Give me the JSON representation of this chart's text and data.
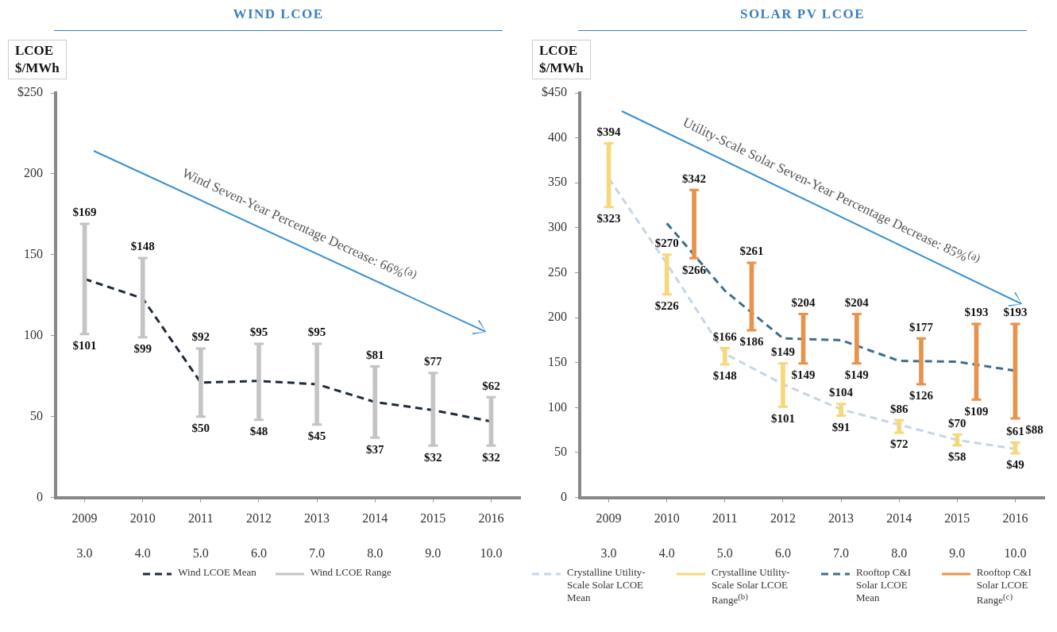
{
  "chart_data": [
    {
      "type": "line",
      "title": "WIND LCOE",
      "ylabel": "LCOE\n$/MWh",
      "xlim": [
        2008.5,
        2016.5
      ],
      "xticks": [
        2009,
        2010,
        2011,
        2012,
        2013,
        2014,
        2015,
        2016
      ],
      "x2lim": [
        2.5,
        10.5
      ],
      "x2ticks": [
        {
          "value": 3,
          "label": "3.0"
        },
        {
          "value": 4,
          "label": "4.0"
        },
        {
          "value": 5,
          "label": "5.0"
        },
        {
          "value": 6,
          "label": "6.0"
        },
        {
          "value": 7,
          "label": "7.0"
        },
        {
          "value": 8,
          "label": "8.0"
        },
        {
          "value": 9,
          "label": "9.0"
        },
        {
          "value": 10,
          "label": "10.0"
        }
      ],
      "ylim": [
        0,
        250
      ],
      "yticks": [
        0,
        50,
        100,
        150,
        200,
        {
          "value": 250,
          "label": "$250"
        }
      ],
      "grid": false,
      "legend": "bottom",
      "marker": "none",
      "series": [
        {
          "name": "Wind LCOE Mean",
          "line_style": "dashed",
          "color": "#1f2a3c",
          "x": [
            2009,
            2010,
            2011,
            2012,
            2013,
            2014,
            2015,
            2016
          ],
          "values": [
            135,
            123,
            71,
            72,
            70,
            59,
            54,
            47
          ]
        },
        {
          "name": "Wind LCOE Range",
          "type": "bar",
          "color": "#c4c4c4",
          "x": [
            2009,
            2010,
            2011,
            2012,
            2013,
            2014,
            2015,
            2016
          ],
          "base": [
            101,
            99,
            50,
            48,
            45,
            37,
            32,
            32
          ],
          "values": [
            68,
            49,
            42,
            47,
            50,
            44,
            45,
            30
          ]
        }
      ],
      "annotations": [
        "Wind Seven-Year Percentage Decrease: 66%$^{(a)}$",
        {
          "text": "$169",
          "x": 2009,
          "y": 169
        },
        {
          "text": "$101",
          "x": 2009,
          "y": 101
        },
        {
          "text": "$148",
          "x": 2010,
          "y": 148
        },
        {
          "text": "$99",
          "x": 2010,
          "y": 99
        },
        {
          "text": "$92",
          "x": 2011,
          "y": 92
        },
        {
          "text": "$50",
          "x": 2011,
          "y": 50
        },
        {
          "text": "$95",
          "x": 2012,
          "y": 95
        },
        {
          "text": "$48",
          "x": 2012,
          "y": 48
        },
        {
          "text": "$95",
          "x": 2013,
          "y": 95
        },
        {
          "text": "$45",
          "x": 2013,
          "y": 45
        },
        {
          "text": "$81",
          "x": 2014,
          "y": 81
        },
        {
          "text": "$37",
          "x": 2014,
          "y": 37
        },
        {
          "text": "$77",
          "x": 2015,
          "y": 77
        },
        {
          "text": "$32",
          "x": 2015,
          "y": 32
        },
        {
          "text": "$62",
          "x": 2016,
          "y": 62
        },
        {
          "text": "$32",
          "x": 2016,
          "y": 32
        }
      ]
    },
    {
      "type": "line",
      "title": "SOLAR PV LCOE",
      "ylabel": "LCOE\n$/MWh",
      "xlim": [
        2008.5,
        2016.5
      ],
      "xticks": [
        2009,
        2010,
        2011,
        2012,
        2013,
        2014,
        2015,
        2016
      ],
      "x2lim": [
        2.5,
        10.5
      ],
      "x2ticks": [
        {
          "value": 3,
          "label": "3.0"
        },
        {
          "value": 4,
          "label": "4.0"
        },
        {
          "value": 5,
          "label": "5.0"
        },
        {
          "value": 6,
          "label": "6.0"
        },
        {
          "value": 7,
          "label": "7.0"
        },
        {
          "value": 8,
          "label": "8.0"
        },
        {
          "value": 9,
          "label": "9.0"
        },
        {
          "value": 10,
          "label": "10.0"
        }
      ],
      "ylim": [
        0,
        450
      ],
      "yticks": [
        0,
        50,
        100,
        150,
        200,
        250,
        300,
        350,
        400,
        {
          "value": 450,
          "label": "$450"
        }
      ],
      "grid": false,
      "legend": "bottom",
      "marker": "none",
      "series": [
        {
          "name": "Crystalline Utility-Scale Solar LCOE Mean",
          "line_style": "dashed",
          "color": "#c5d6e6",
          "x": [
            2009,
            2010,
            2011,
            2012,
            2013,
            2014,
            2015,
            2016
          ],
          "values": [
            355,
            260,
            160,
            126,
            98,
            81,
            64,
            54
          ]
        },
        {
          "name": "Crystalline Utility-Scale Solar LCOE Range$^{(b)}$",
          "type": "bar",
          "color": "#f6d77a",
          "x": [
            2009,
            2010,
            2011,
            2012,
            2013,
            2014,
            2015,
            2016
          ],
          "base": [
            323,
            226,
            148,
            101,
            91,
            72,
            58,
            49
          ],
          "values": [
            71,
            44,
            18,
            48,
            13,
            14,
            12,
            12
          ]
        },
        {
          "name": "Rooftop C&I Solar LCOE Mean",
          "line_style": "dashed",
          "color": "#3f6e8c",
          "x": [
            2010,
            2011,
            2012,
            2013,
            2014,
            2015,
            2016
          ],
          "values": [
            305,
            230,
            177,
            175,
            152,
            151,
            141
          ]
        },
        {
          "name": "Rooftop C&I Solar LCOE Range$^{(c)}$",
          "type": "bar",
          "color": "#e8924a",
          "x": [
            2010.47,
            2011.46,
            2012.35,
            2013.27,
            2014.38,
            2015.33,
            2016
          ],
          "base": [
            266,
            186,
            149,
            149,
            126,
            109,
            88
          ],
          "values": [
            76,
            75,
            55,
            55,
            51,
            84,
            105
          ]
        }
      ],
      "annotations": [
        "Utility-Scale Solar Seven-Year Percentage Decrease: 85%$^{(a)}$",
        {
          "text": "$394",
          "x": 2009,
          "y": 394
        },
        {
          "text": "$323",
          "x": 2009,
          "y": 323
        },
        {
          "text": "$270",
          "x": 2010,
          "y": 270
        },
        {
          "text": "$226",
          "x": 2010,
          "y": 226
        },
        {
          "text": "$166",
          "x": 2011,
          "y": 166
        },
        {
          "text": "$148",
          "x": 2011,
          "y": 148
        },
        {
          "text": "$149",
          "x": 2012,
          "y": 149
        },
        {
          "text": "$101",
          "x": 2012,
          "y": 101
        },
        {
          "text": "$104",
          "x": 2013,
          "y": 104
        },
        {
          "text": "$91",
          "x": 2013,
          "y": 91
        },
        {
          "text": "$86",
          "x": 2014,
          "y": 86
        },
        {
          "text": "$72",
          "x": 2014,
          "y": 72
        },
        {
          "text": "$70",
          "x": 2015,
          "y": 70
        },
        {
          "text": "$58",
          "x": 2015,
          "y": 58
        },
        {
          "text": "$61",
          "x": 2016,
          "y": 61
        },
        {
          "text": "$49",
          "x": 2016,
          "y": 49
        },
        {
          "text": "$342",
          "x": 2010.47,
          "y": 342
        },
        {
          "text": "$266",
          "x": 2010.47,
          "y": 266
        },
        {
          "text": "$261",
          "x": 2011.46,
          "y": 261
        },
        {
          "text": "$186",
          "x": 2011.46,
          "y": 186
        },
        {
          "text": "$204",
          "x": 2012.35,
          "y": 204
        },
        {
          "text": "$149",
          "x": 2012.35,
          "y": 149
        },
        {
          "text": "$204",
          "x": 2013.27,
          "y": 204
        },
        {
          "text": "$149",
          "x": 2013.27,
          "y": 149
        },
        {
          "text": "$177",
          "x": 2014.38,
          "y": 177
        },
        {
          "text": "$126",
          "x": 2014.38,
          "y": 126
        },
        {
          "text": "$193",
          "x": 2015.33,
          "y": 193
        },
        {
          "text": "$109",
          "x": 2015.33,
          "y": 109
        },
        {
          "text": "$193",
          "x": 2016,
          "y": 193
        },
        {
          "text": "$88",
          "x": 2016,
          "y": 88
        }
      ]
    }
  ]
}
